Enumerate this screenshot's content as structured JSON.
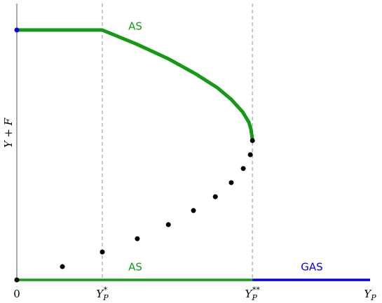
{
  "chart_data": {
    "type": "line",
    "y_label": "Y + F",
    "xlim": [
      0,
      1
    ],
    "ylim": [
      0,
      1
    ],
    "xticks": [
      0,
      {
        "value": 0.242,
        "label": "YP*"
      },
      {
        "value": 0.667,
        "label": "YP**"
      },
      {
        "value": 1,
        "label": "YP"
      }
    ],
    "grid": "x-dashed",
    "series": [
      {
        "name": "AS",
        "color": "#159a15",
        "style": "thick-line",
        "x": [
          0,
          0.242,
          0.339,
          0.429,
          0.508,
          0.567,
          0.607,
          0.639,
          0.657,
          0.663,
          0.667
        ],
        "values": [
          0.904,
          0.904,
          0.853,
          0.8,
          0.744,
          0.696,
          0.653,
          0.608,
          0.57,
          0.544,
          0.506
        ]
      },
      {
        "color": "#000000",
        "style": "scatter",
        "x": [
          0.129,
          0.242,
          0.341,
          0.429,
          0.5,
          0.562,
          0.607,
          0.641,
          0.661,
          0.667
        ],
        "values": [
          0.048,
          0.101,
          0.149,
          0.2,
          0.251,
          0.301,
          0.352,
          0.403,
          0.453,
          0.504
        ]
      },
      {
        "name": "AS",
        "color": "#159a15",
        "style": "line",
        "x": [
          0,
          0.667
        ],
        "values": [
          0,
          0
        ]
      },
      {
        "name": "GAS",
        "color": "#0000e6",
        "style": "line",
        "x": [
          0.667,
          1
        ],
        "values": [
          0,
          0
        ]
      },
      {
        "color": "#0000e6",
        "style": "scatter",
        "x": [
          0
        ],
        "values": [
          0.904
        ]
      },
      {
        "color": "#000000",
        "style": "scatter",
        "x": [
          0
        ],
        "values": [
          0
        ]
      }
    ]
  }
}
